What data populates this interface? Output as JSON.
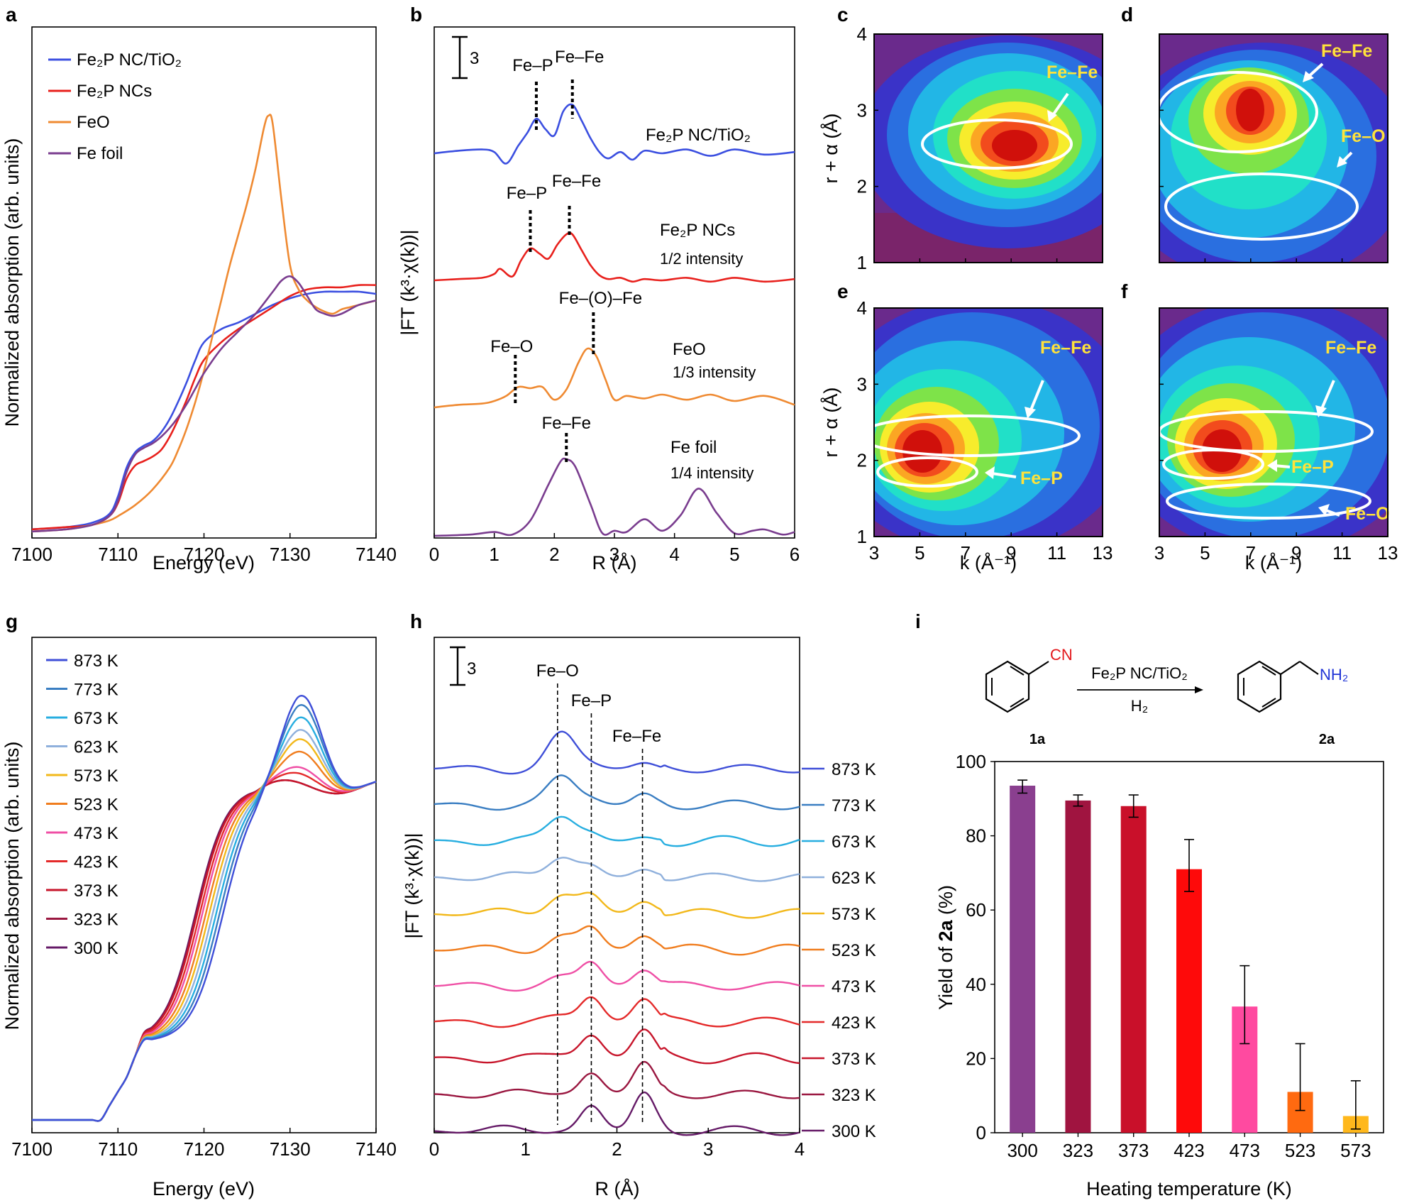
{
  "panel_labels": [
    "a",
    "b",
    "c",
    "d",
    "e",
    "f",
    "g",
    "h",
    "i"
  ],
  "chart_data": [
    {
      "id": "a",
      "type": "line",
      "xlabel": "Energy (eV)",
      "ylabel": "Normalized absorption (arb. units)",
      "xlim": [
        7100,
        7140
      ],
      "xticks": [
        7100,
        7110,
        7120,
        7130,
        7140
      ],
      "series": [
        {
          "name": "Fe2P NC/TiO2",
          "color": "#3b4fe0",
          "x": [
            7100,
            7104,
            7107,
            7109,
            7110,
            7111,
            7112,
            7113,
            7114,
            7115,
            7116,
            7117,
            7118,
            7119,
            7120,
            7122,
            7124,
            7126,
            7128,
            7130,
            7132,
            7134,
            7136,
            7138,
            7140
          ],
          "y": [
            0.02,
            0.03,
            0.05,
            0.09,
            0.17,
            0.3,
            0.37,
            0.4,
            0.42,
            0.46,
            0.52,
            0.6,
            0.69,
            0.79,
            0.87,
            0.93,
            0.96,
            1.0,
            1.04,
            1.07,
            1.09,
            1.1,
            1.1,
            1.1,
            1.09
          ]
        },
        {
          "name": "Fe2P NCs",
          "color": "#e8201c",
          "x": [
            7100,
            7104,
            7107,
            7109,
            7110,
            7111,
            7112,
            7113,
            7114,
            7115,
            7116,
            7117,
            7118,
            7119,
            7120,
            7122,
            7124,
            7126,
            7128,
            7130,
            7132,
            7134,
            7136,
            7138,
            7140
          ],
          "y": [
            0.02,
            0.03,
            0.04,
            0.08,
            0.14,
            0.25,
            0.31,
            0.33,
            0.35,
            0.38,
            0.44,
            0.52,
            0.61,
            0.71,
            0.79,
            0.87,
            0.93,
            0.98,
            1.03,
            1.08,
            1.11,
            1.12,
            1.12,
            1.13,
            1.13
          ]
        },
        {
          "name": "FeO",
          "color": "#ef8a32",
          "x": [
            7100,
            7104,
            7107,
            7109,
            7110,
            7112,
            7114,
            7116,
            7117,
            7118,
            7119,
            7120,
            7121,
            7122,
            7123,
            7124,
            7125,
            7126,
            7127,
            7127.5,
            7128,
            7129,
            7130,
            7131,
            7132,
            7133,
            7134,
            7135,
            7136,
            7137,
            7138,
            7140
          ],
          "y": [
            0.01,
            0.02,
            0.04,
            0.06,
            0.08,
            0.13,
            0.2,
            0.3,
            0.38,
            0.48,
            0.6,
            0.74,
            0.9,
            1.06,
            1.22,
            1.36,
            1.5,
            1.66,
            1.85,
            1.9,
            1.86,
            1.52,
            1.22,
            1.11,
            1.06,
            1.03,
            1.01,
            1.0,
            1.02,
            1.03,
            1.04,
            1.06
          ]
        },
        {
          "name": "Fe foil",
          "color": "#7a3d8f",
          "x": [
            7100,
            7104,
            7107,
            7109,
            7110,
            7111,
            7112,
            7113,
            7114,
            7115,
            7116,
            7117,
            7118,
            7119,
            7120,
            7122,
            7124,
            7126,
            7128,
            7129,
            7130,
            7131,
            7132,
            7133,
            7134,
            7135,
            7136,
            7137,
            7138,
            7140
          ],
          "y": [
            0.01,
            0.02,
            0.04,
            0.08,
            0.15,
            0.28,
            0.36,
            0.39,
            0.41,
            0.44,
            0.48,
            0.53,
            0.59,
            0.66,
            0.73,
            0.84,
            0.92,
            1.0,
            1.1,
            1.15,
            1.17,
            1.14,
            1.08,
            1.02,
            1.0,
            0.99,
            1.0,
            1.02,
            1.04,
            1.06
          ]
        }
      ]
    },
    {
      "id": "b",
      "type": "line",
      "xlabel": "R (Å)",
      "ylabel": "|FT (k³·χ(k))|",
      "xlim": [
        0,
        6
      ],
      "xticks": [
        0,
        1,
        2,
        3,
        4,
        5,
        6
      ],
      "scale_bar": "3",
      "series": [
        {
          "name": "Fe2P NC/TiO2",
          "note": "",
          "color": "#3b4fe0",
          "offset": 3,
          "x": [
            0,
            0.4,
            0.8,
            1.0,
            1.2,
            1.4,
            1.55,
            1.7,
            1.85,
            2.0,
            2.15,
            2.3,
            2.45,
            2.6,
            2.75,
            2.9,
            3.1,
            3.3,
            3.5,
            3.8,
            4.2,
            4.6,
            5.0,
            5.5,
            6.0
          ],
          "y": [
            0,
            0.2,
            0.3,
            0.1,
            -0.8,
            0.6,
            1.6,
            2.7,
            1.9,
            1.4,
            3.3,
            3.8,
            2.6,
            1.2,
            0.1,
            -0.4,
            0.1,
            -0.5,
            0.2,
            0.0,
            0.3,
            -0.2,
            0.3,
            -0.1,
            0.1
          ]
        },
        {
          "name": "Fe2P NCs",
          "note": "1/2 intensity",
          "color": "#e8201c",
          "offset": 2,
          "x": [
            0,
            0.4,
            0.8,
            1.0,
            1.1,
            1.3,
            1.45,
            1.6,
            1.75,
            1.9,
            2.05,
            2.2,
            2.3,
            2.45,
            2.6,
            2.75,
            2.9,
            3.1,
            3.3,
            3.5,
            3.8,
            4.2,
            4.6,
            5.0,
            5.5,
            6.0
          ],
          "y": [
            0,
            0.1,
            0.2,
            0.5,
            0.9,
            0.3,
            1.6,
            2.5,
            2.1,
            1.7,
            2.8,
            3.6,
            3.6,
            2.4,
            1.2,
            0.4,
            0.1,
            0.2,
            -0.1,
            0.1,
            0.0,
            0.2,
            -0.1,
            0.2,
            -0.1,
            0.1
          ]
        },
        {
          "name": "FeO",
          "note": "1/3 intensity",
          "color": "#ef8a32",
          "offset": 1,
          "x": [
            0,
            0.4,
            0.8,
            1.0,
            1.2,
            1.4,
            1.6,
            1.8,
            2.0,
            2.2,
            2.4,
            2.55,
            2.7,
            2.85,
            3.0,
            3.2,
            3.5,
            3.8,
            4.2,
            4.6,
            5.0,
            5.5,
            6.0
          ],
          "y": [
            0,
            0.2,
            0.3,
            0.5,
            0.9,
            1.6,
            1.5,
            1.6,
            0.6,
            1.4,
            3.5,
            4.6,
            4.0,
            2.2,
            0.6,
            0.9,
            0.7,
            1.0,
            0.6,
            1.0,
            0.5,
            0.9,
            0.2
          ]
        },
        {
          "name": "Fe foil",
          "note": "1/4 intensity",
          "color": "#7a3d8f",
          "offset": 0,
          "x": [
            0,
            0.6,
            1.0,
            1.3,
            1.6,
            1.9,
            2.1,
            2.2,
            2.35,
            2.6,
            2.8,
            3.0,
            3.2,
            3.5,
            3.8,
            4.1,
            4.4,
            4.7,
            5.0,
            5.3,
            5.5,
            5.8,
            6.0
          ],
          "y": [
            0,
            0.1,
            0.3,
            0.1,
            1.2,
            4.0,
            5.8,
            6.0,
            5.4,
            2.5,
            0.2,
            0.4,
            0.3,
            1.3,
            0.4,
            1.6,
            3.7,
            1.8,
            0.2,
            0.4,
            0.5,
            0.1,
            0.3
          ]
        }
      ],
      "markers": [
        {
          "label": "Fe–P",
          "x": 1.7,
          "trace": 0
        },
        {
          "label": "Fe–Fe",
          "x": 2.3,
          "trace": 0
        },
        {
          "label": "Fe–P",
          "x": 1.6,
          "trace": 1
        },
        {
          "label": "Fe–Fe",
          "x": 2.25,
          "trace": 1
        },
        {
          "label": "Fe–O",
          "x": 1.35,
          "trace": 2
        },
        {
          "label": "Fe–(O)–Fe",
          "x": 2.65,
          "trace": 2
        },
        {
          "label": "Fe–Fe",
          "x": 2.2,
          "trace": 3
        }
      ],
      "curve_labels": [
        "Fe2P NC/TiO2",
        "Fe2P NCs",
        "FeO",
        "Fe foil"
      ]
    },
    {
      "id": "c-f",
      "type": "heatmap",
      "xlabel": "k (Å⁻¹)",
      "ylabel": "r + α (Å)",
      "xlim": [
        3,
        13
      ],
      "ylim": [
        1,
        4
      ],
      "xticks": [
        3,
        5,
        7,
        9,
        11,
        13
      ],
      "yticks": [
        1,
        2,
        3,
        4
      ],
      "panels": [
        {
          "id": "c",
          "annotations": [
            "Fe–Fe"
          ]
        },
        {
          "id": "d",
          "annotations": [
            "Fe–Fe",
            "Fe–O"
          ]
        },
        {
          "id": "e",
          "annotations": [
            "Fe–Fe",
            "Fe–P"
          ]
        },
        {
          "id": "f",
          "annotations": [
            "Fe–Fe",
            "Fe–P",
            "Fe–O"
          ]
        }
      ]
    },
    {
      "id": "g",
      "type": "line",
      "xlabel": "Energy (eV)",
      "ylabel": "Normalized absorption (arb. units)",
      "xlim": [
        7100,
        7140
      ],
      "xticks": [
        7100,
        7110,
        7120,
        7130,
        7140
      ],
      "series_names": [
        "873 K",
        "773 K",
        "673 K",
        "623 K",
        "573 K",
        "523 K",
        "473 K",
        "423 K",
        "373 K",
        "323 K",
        "300 K"
      ],
      "series_colors": [
        "#3f4fd8",
        "#3a7ec2",
        "#27aee0",
        "#8fb0dc",
        "#f2b81a",
        "#f07d1e",
        "#ef4fa5",
        "#e42a2a",
        "#c7152b",
        "#9a1740",
        "#651a67"
      ],
      "peak_heights": [
        1.28,
        1.25,
        1.21,
        1.17,
        1.14,
        1.1,
        1.05,
        1.03,
        1.0,
        1.0,
        1.0
      ],
      "edge_shift": [
        3.2,
        2.8,
        2.4,
        2.0,
        1.6,
        1.2,
        0.8,
        0.5,
        0.2,
        0.1,
        0.0
      ]
    },
    {
      "id": "h",
      "type": "line",
      "xlabel": "R (Å)",
      "ylabel": "|FT (k³·χ(k))|",
      "xlim": [
        0,
        4
      ],
      "xticks": [
        0,
        1,
        2,
        3,
        4
      ],
      "scale_bar": "3",
      "markers": [
        {
          "label": "Fe–O",
          "x": 1.35
        },
        {
          "label": "Fe–P",
          "x": 1.72
        },
        {
          "label": "Fe–Fe",
          "x": 2.28
        }
      ],
      "series_names": [
        "873 K",
        "773 K",
        "673 K",
        "623 K",
        "573 K",
        "523 K",
        "473 K",
        "423 K",
        "373 K",
        "323 K",
        "300 K"
      ],
      "series_colors": [
        "#3f4fd8",
        "#3a7ec2",
        "#27aee0",
        "#8fb0dc",
        "#f2b81a",
        "#f07d1e",
        "#ef4fa5",
        "#e42a2a",
        "#c7152b",
        "#9a1740",
        "#651a67"
      ]
    },
    {
      "id": "i",
      "type": "bar",
      "xlabel": "Heating temperature (K)",
      "ylabel_prefix": "Yield of ",
      "ylabel_bold": "2a",
      "ylabel_suffix": " (%)",
      "categories": [
        "300",
        "323",
        "373",
        "423",
        "473",
        "523",
        "573"
      ],
      "values": [
        93.5,
        89.5,
        88,
        71,
        34,
        11,
        4.5
      ],
      "errors_low": [
        2,
        1.5,
        3,
        6,
        10,
        5,
        3.5
      ],
      "errors_high": [
        1.5,
        1.5,
        3,
        8,
        11,
        13,
        9.5
      ],
      "colors": [
        "#8a3f8f",
        "#a01440",
        "#c9102a",
        "#fe0a0a",
        "#ff4aa0",
        "#ff6a10",
        "#ffb81c"
      ],
      "ylim": [
        0,
        100
      ],
      "yticks": [
        0,
        20,
        40,
        60,
        80,
        100
      ]
    }
  ],
  "legend_a": [
    "Fe₂P NC/TiO₂",
    "Fe₂P NCs",
    "FeO",
    "Fe foil"
  ],
  "curve_notes_b": [
    "1/2 intensity",
    "1/3 intensity",
    "1/4 intensity"
  ],
  "reaction": {
    "reactant_group": "CN",
    "product_group": "NH₂",
    "catalyst": "Fe₂P NC/TiO₂",
    "reagent": "H₂",
    "reactant_label": "1a",
    "product_label": "2a"
  }
}
